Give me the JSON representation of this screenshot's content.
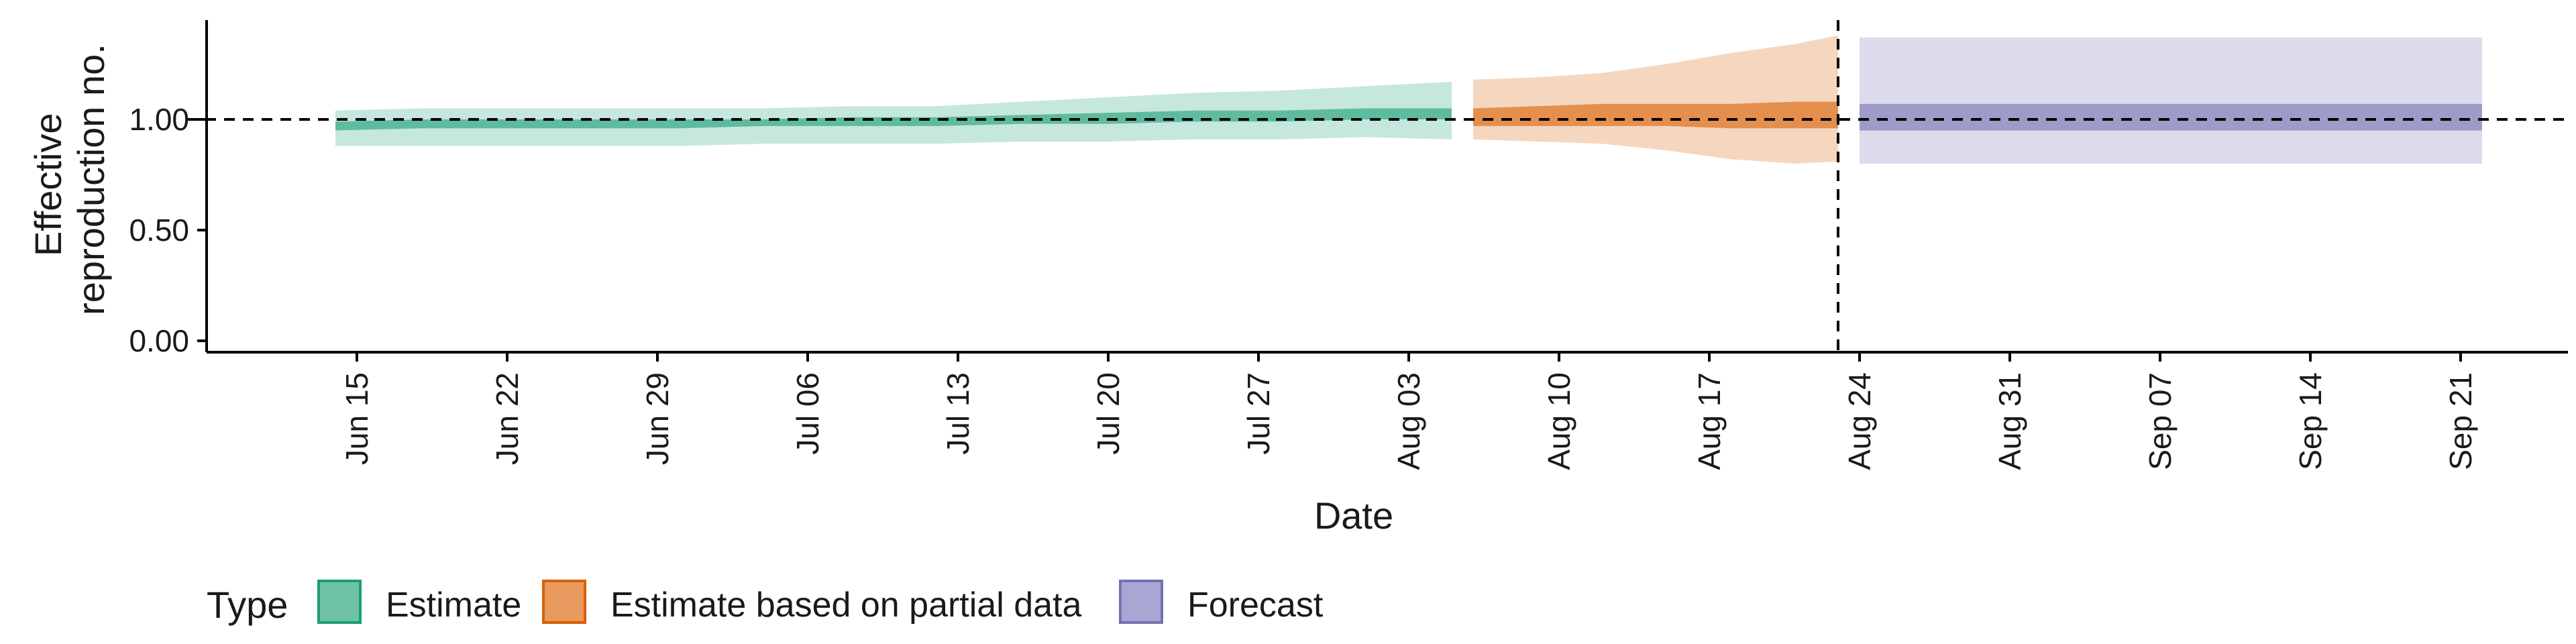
{
  "chart_data": {
    "type": "area",
    "title": "",
    "xlabel": "Date",
    "ylabel_lines": [
      "Effective",
      "reproduction no."
    ],
    "y_ticks": [
      "0.00",
      "0.50",
      "1.00"
    ],
    "ylim": [
      0,
      1.45
    ],
    "x_ticks": [
      "Jun 15",
      "Jun 22",
      "Jun 29",
      "Jul 06",
      "Jul 13",
      "Jul 20",
      "Jul 27",
      "Aug 03",
      "Aug 10",
      "Aug 17",
      "Aug 24",
      "Aug 31",
      "Sep 07",
      "Sep 14",
      "Sep 21"
    ],
    "x_tick_dates": [
      "2020-06-15",
      "2020-06-22",
      "2020-06-29",
      "2020-07-06",
      "2020-07-13",
      "2020-07-20",
      "2020-07-27",
      "2020-08-03",
      "2020-08-10",
      "2020-08-17",
      "2020-08-24",
      "2020-08-31",
      "2020-09-07",
      "2020-09-14",
      "2020-09-21"
    ],
    "xlim": [
      "2020-06-08",
      "2020-09-26"
    ],
    "reference_hline": 1.0,
    "forecast_date_vline": "2020-08-23",
    "grid": false,
    "legend_position": "bottom",
    "legend": {
      "title": "Type",
      "entries": [
        {
          "label": "Estimate",
          "fill": "#70c2a5",
          "border": "#1b9e77"
        },
        {
          "label": "Estimate based on partial data",
          "fill": "#e99a5e",
          "border": "#d95f02"
        },
        {
          "label": "Forecast",
          "fill": "#a9a6d3",
          "border": "#7570b3"
        }
      ]
    },
    "series": [
      {
        "name": "Estimate",
        "colors": {
          "outer": "#1b9e77",
          "inner": "#1b9e77"
        },
        "x": [
          "2020-06-14",
          "2020-06-18",
          "2020-06-22",
          "2020-06-26",
          "2020-06-30",
          "2020-07-04",
          "2020-07-08",
          "2020-07-12",
          "2020-07-16",
          "2020-07-20",
          "2020-07-24",
          "2020-07-28",
          "2020-08-01",
          "2020-08-05"
        ],
        "lower90": [
          0.88,
          0.88,
          0.88,
          0.88,
          0.88,
          0.89,
          0.89,
          0.89,
          0.9,
          0.9,
          0.91,
          0.91,
          0.92,
          0.91
        ],
        "upper90": [
          1.04,
          1.05,
          1.05,
          1.05,
          1.05,
          1.05,
          1.06,
          1.06,
          1.08,
          1.1,
          1.12,
          1.13,
          1.15,
          1.17
        ],
        "lower20": [
          0.95,
          0.96,
          0.96,
          0.96,
          0.96,
          0.97,
          0.97,
          0.97,
          0.98,
          0.98,
          0.99,
          0.99,
          1.0,
          1.0
        ],
        "upper20": [
          0.99,
          1.0,
          1.0,
          1.0,
          1.0,
          1.0,
          1.01,
          1.01,
          1.02,
          1.03,
          1.04,
          1.04,
          1.05,
          1.05
        ]
      },
      {
        "name": "Estimate based on partial data",
        "colors": {
          "outer": "#d95f02",
          "inner": "#d95f02"
        },
        "x": [
          "2020-08-06",
          "2020-08-09",
          "2020-08-12",
          "2020-08-15",
          "2020-08-18",
          "2020-08-21",
          "2020-08-23"
        ],
        "lower90": [
          0.91,
          0.9,
          0.89,
          0.86,
          0.82,
          0.8,
          0.81
        ],
        "upper90": [
          1.18,
          1.19,
          1.21,
          1.25,
          1.3,
          1.34,
          1.38
        ],
        "lower20": [
          0.97,
          0.97,
          0.97,
          0.97,
          0.96,
          0.96,
          0.96
        ],
        "upper20": [
          1.05,
          1.06,
          1.07,
          1.07,
          1.07,
          1.08,
          1.08
        ]
      },
      {
        "name": "Forecast",
        "colors": {
          "outer": "#7570b3",
          "inner": "#7570b3"
        },
        "x": [
          "2020-08-24",
          "2020-09-22"
        ],
        "lower90": [
          0.8,
          0.8
        ],
        "upper90": [
          1.37,
          1.37
        ],
        "lower20": [
          0.95,
          0.95
        ],
        "upper20": [
          1.07,
          1.07
        ]
      }
    ]
  }
}
